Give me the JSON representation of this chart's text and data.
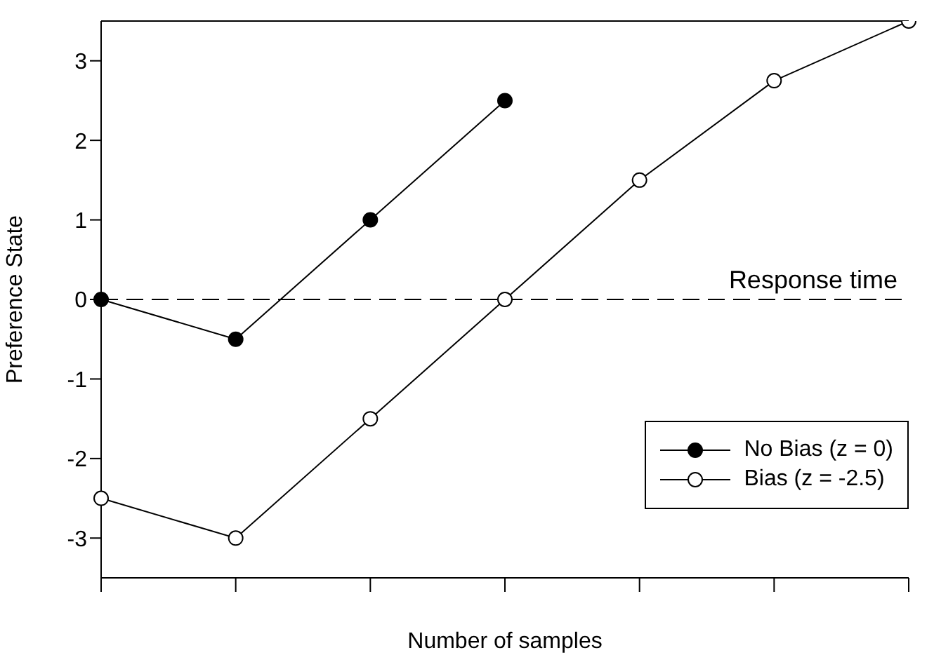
{
  "chart_data": {
    "type": "line",
    "xlabel": "Number of samples",
    "ylabel": "Preference State",
    "categories": [
      null,
      null,
      null,
      null,
      null,
      null,
      null
    ],
    "ylim": [
      -3.5,
      3.5
    ],
    "yticks": [
      -3,
      -2,
      -1,
      0,
      1,
      2,
      3
    ],
    "series": [
      {
        "name": "No Bias (z = 0)",
        "color": "#000000",
        "values": [
          0,
          -0.5,
          1,
          2.5,
          null,
          null,
          null
        ]
      },
      {
        "name": "Bias (z = -2.5)",
        "color": "#000000",
        "values": [
          -2.5,
          -3,
          -1.5,
          0,
          1.5,
          2.75,
          3.5
        ]
      }
    ],
    "ref_lines": [
      {
        "axis": "y",
        "value": 0,
        "label": "Response time",
        "line_style": "dashed",
        "color": "#000000"
      }
    ],
    "legend": "bottom right",
    "marker": "circle"
  }
}
